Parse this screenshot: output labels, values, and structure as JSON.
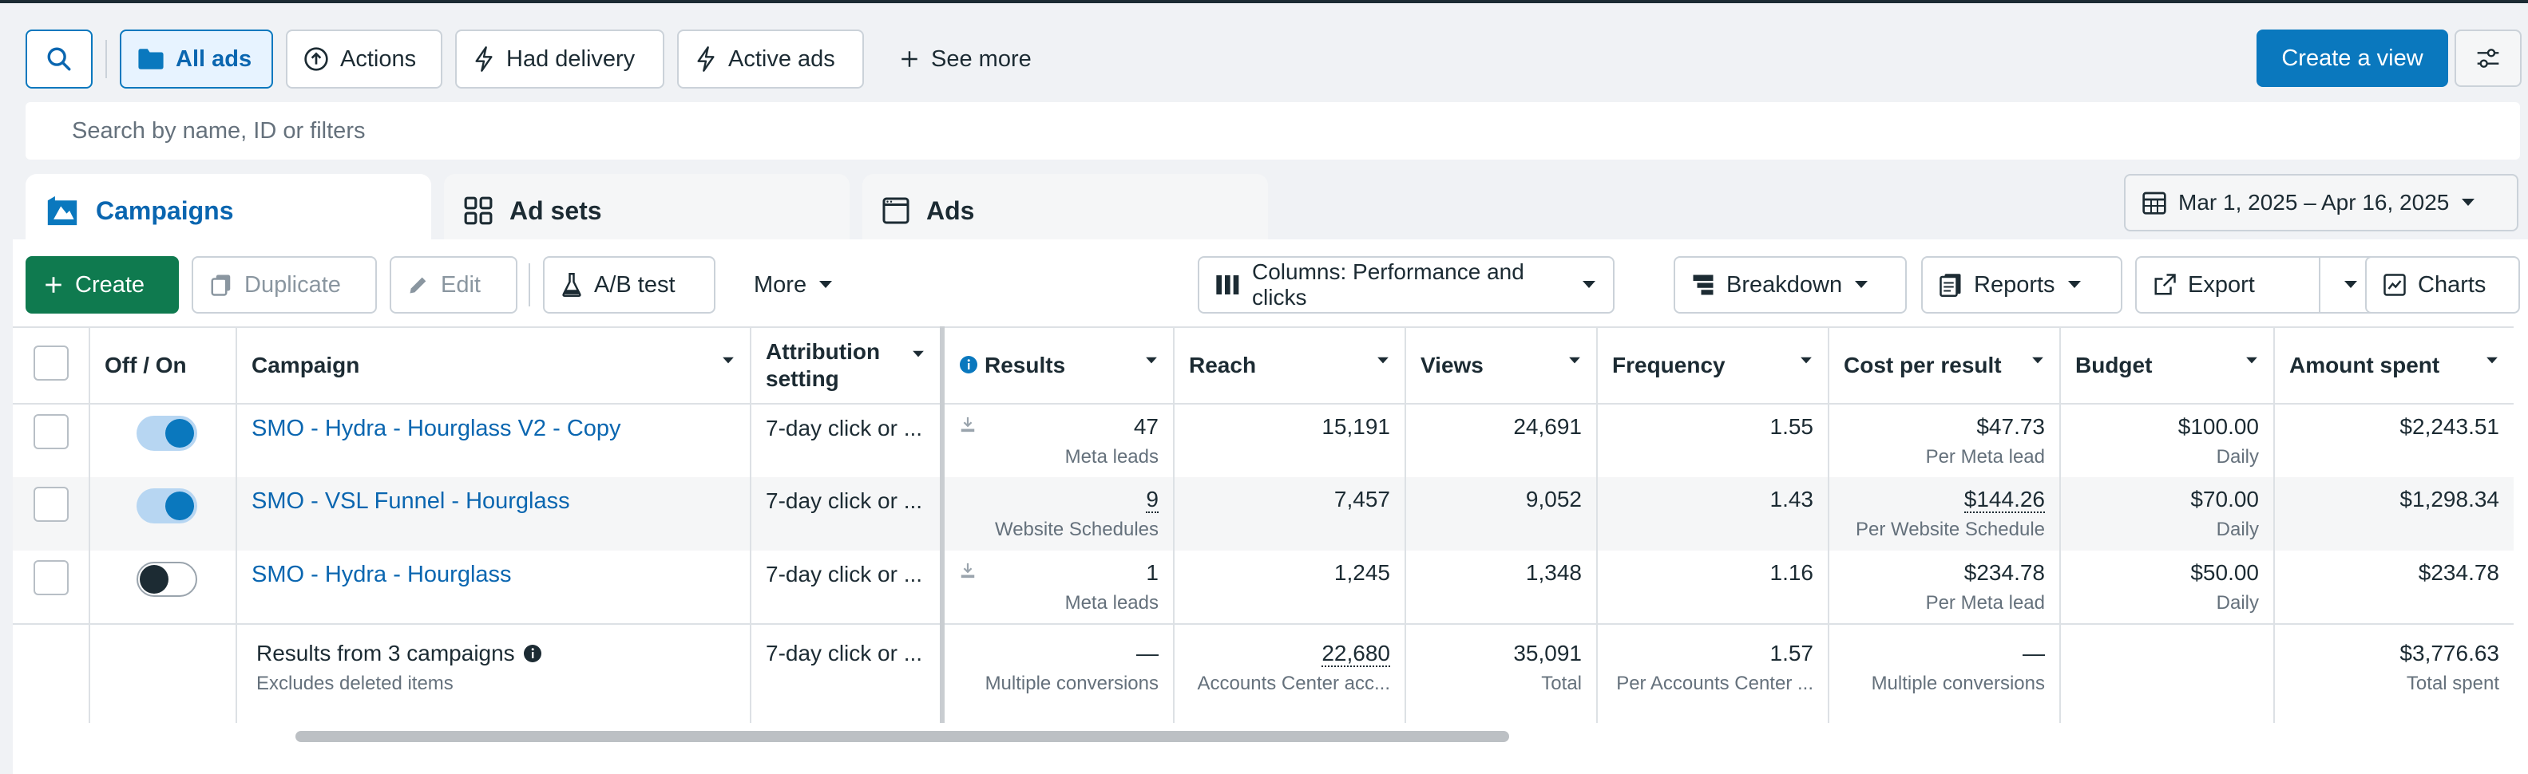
{
  "toolbar": {
    "all_ads": "All ads",
    "actions": "Actions",
    "had_delivery": "Had delivery",
    "active_ads": "Active ads",
    "see_more": "See more",
    "create_view": "Create a view"
  },
  "search": {
    "placeholder": "Search by name, ID or filters"
  },
  "tabs": {
    "campaigns": "Campaigns",
    "ad_sets": "Ad sets",
    "ads": "Ads"
  },
  "date_range": "Mar 1, 2025 – Apr 16, 2025",
  "actions_bar": {
    "create": "Create",
    "duplicate": "Duplicate",
    "edit": "Edit",
    "ab_test": "A/B test",
    "more": "More",
    "columns": "Columns: Performance and clicks",
    "breakdown": "Breakdown",
    "reports": "Reports",
    "export": "Export",
    "charts": "Charts"
  },
  "table": {
    "headers": {
      "off_on": "Off / On",
      "campaign": "Campaign",
      "attribution": "Attribution setting",
      "results": "Results",
      "reach": "Reach",
      "views": "Views",
      "frequency": "Frequency",
      "cost_per_result": "Cost per result",
      "budget": "Budget",
      "amount_spent": "Amount spent"
    },
    "rows": [
      {
        "on": true,
        "name": "SMO - Hydra - Hourglass V2 - Copy",
        "attribution": "7-day click or ...",
        "results": "47",
        "results_sub": "Meta leads",
        "reach": "15,191",
        "views": "24,691",
        "frequency": "1.55",
        "cpr": "$47.73",
        "cpr_sub": "Per Meta lead",
        "budget": "$100.00",
        "budget_sub": "Daily",
        "spent": "$2,243.51"
      },
      {
        "on": true,
        "name": "SMO - VSL Funnel - Hourglass",
        "attribution": "7-day click or ...",
        "results": "9",
        "results_sub": "Website Schedules",
        "reach": "7,457",
        "views": "9,052",
        "frequency": "1.43",
        "cpr": "$144.26",
        "cpr_sub": "Per Website Schedule",
        "budget": "$70.00",
        "budget_sub": "Daily",
        "spent": "$1,298.34"
      },
      {
        "on": false,
        "name": "SMO - Hydra - Hourglass",
        "attribution": "7-day click or ...",
        "results": "1",
        "results_sub": "Meta leads",
        "reach": "1,245",
        "views": "1,348",
        "frequency": "1.16",
        "cpr": "$234.78",
        "cpr_sub": "Per Meta lead",
        "budget": "$50.00",
        "budget_sub": "Daily",
        "spent": "$234.78"
      }
    ],
    "totals": {
      "label": "Results from 3 campaigns",
      "label_sub": "Excludes deleted items",
      "attribution": "7-day click or ...",
      "results": "—",
      "results_sub": "Multiple conversions",
      "reach": "22,680",
      "reach_sub": "Accounts Center acc...",
      "views": "35,091",
      "views_sub": "Total",
      "frequency": "1.57",
      "frequency_sub": "Per Accounts Center ...",
      "cpr": "—",
      "cpr_sub": "Multiple conversions",
      "spent": "$3,776.63",
      "spent_sub": "Total spent"
    }
  },
  "colors": {
    "accent": "#0a78be",
    "create": "#0f7a4f"
  }
}
